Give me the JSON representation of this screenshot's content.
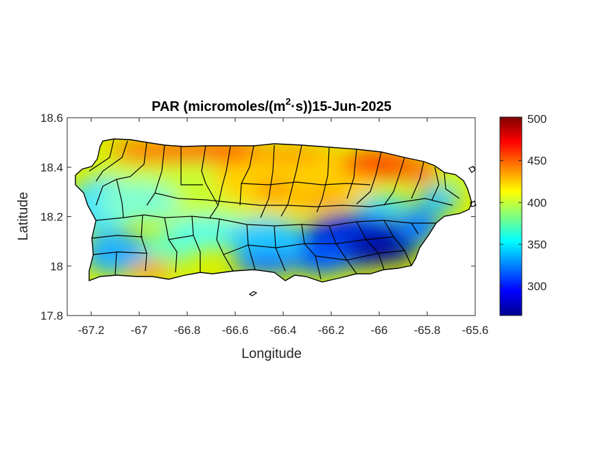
{
  "title": {
    "prefix": "PAR (micromoles/(m",
    "superscript": "2",
    "suffix": "·s))15-Jun-2025"
  },
  "xaxis": {
    "label": "Longitude",
    "lim": [
      -67.3,
      -65.6
    ],
    "ticks": [
      "-67.2",
      "-67",
      "-66.8",
      "-66.6",
      "-66.4",
      "-66.2",
      "-66",
      "-65.8",
      "-65.6"
    ],
    "tick_values": [
      -67.2,
      -67.0,
      -66.8,
      -66.6,
      -66.4,
      -66.2,
      -66.0,
      -65.8,
      -65.6
    ]
  },
  "yaxis": {
    "label": "Latitude",
    "lim": [
      17.8,
      18.6
    ],
    "ticks": [
      "18.6",
      "18.4",
      "18.2",
      "18",
      "17.8"
    ],
    "tick_values": [
      18.6,
      18.4,
      18.2,
      18.0,
      17.8
    ]
  },
  "colorbar": {
    "colormap": "jet",
    "lim": [
      265,
      502
    ],
    "ticks": [
      "500",
      "450",
      "400",
      "350",
      "300"
    ],
    "tick_values": [
      500,
      450,
      400,
      350,
      300
    ]
  },
  "map": {
    "region": "Puerto Rico",
    "variable": "PAR",
    "date": "15-Jun-2025",
    "municipal_boundaries": true,
    "boundary_color": "#000000"
  }
}
